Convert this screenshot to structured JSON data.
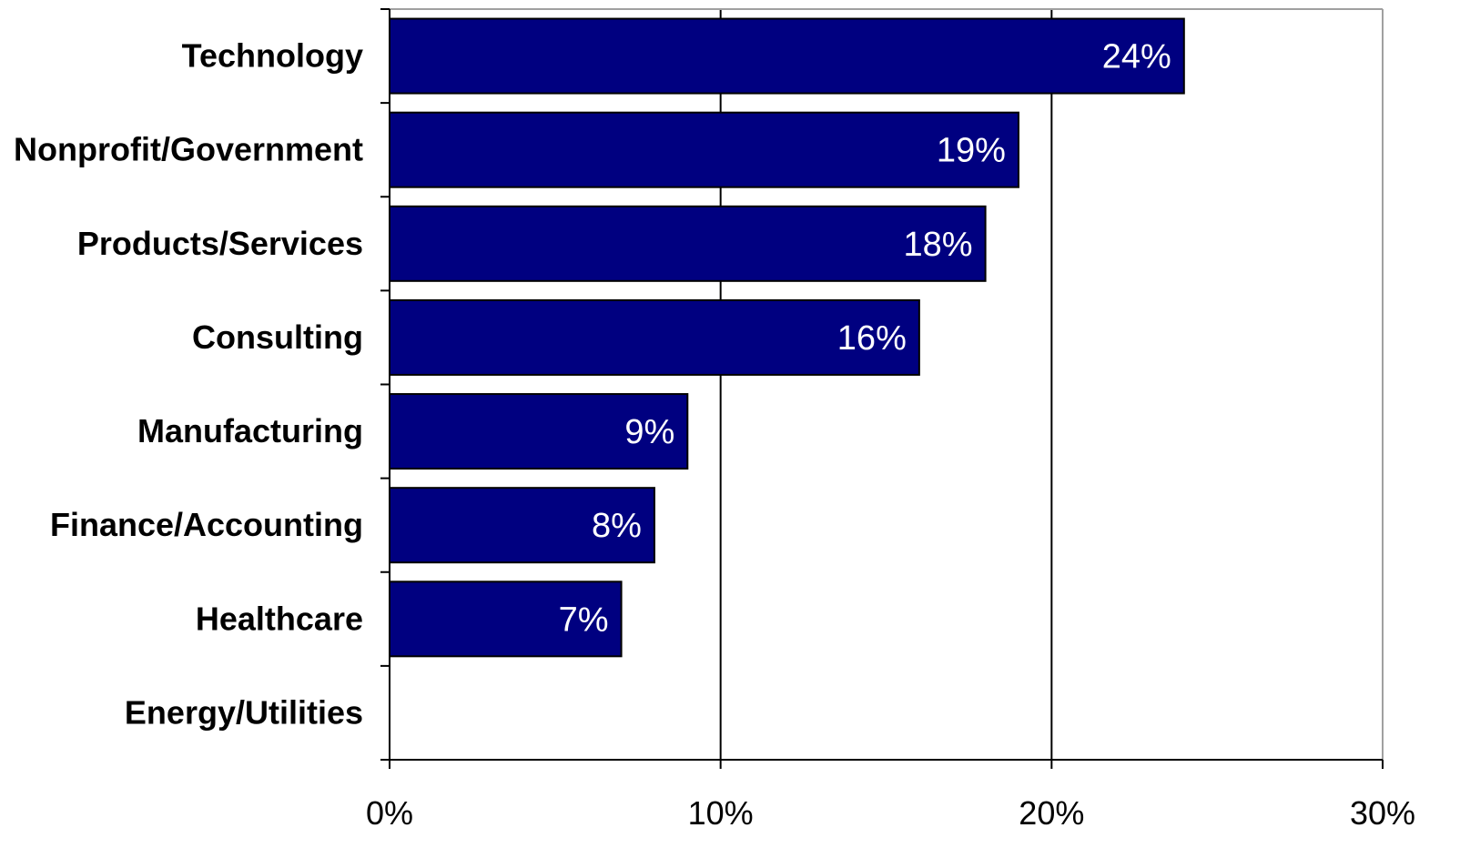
{
  "chart_data": {
    "type": "bar",
    "orientation": "horizontal",
    "categories": [
      "Technology",
      "Nonprofit/Government",
      "Products/Services",
      "Consulting",
      "Manufacturing",
      "Finance/Accounting",
      "Healthcare",
      "Energy/Utilities"
    ],
    "values": [
      24,
      19,
      18,
      16,
      9,
      8,
      7,
      0
    ],
    "value_labels": [
      "24%",
      "19%",
      "18%",
      "16%",
      "9%",
      "8%",
      "7%",
      ""
    ],
    "xlim": [
      0,
      30
    ],
    "xticks": [
      0,
      10,
      20,
      30
    ],
    "xtick_labels": [
      "0%",
      "10%",
      "20%",
      "30%"
    ],
    "title": "",
    "xlabel": "",
    "ylabel": "",
    "grid": "vertical",
    "legend": "none",
    "colors": {
      "bar": "#000080",
      "bar_border": "#000000",
      "grid": "#000000",
      "frame": "#a0a0a0",
      "value_label": "#ffffff"
    }
  }
}
